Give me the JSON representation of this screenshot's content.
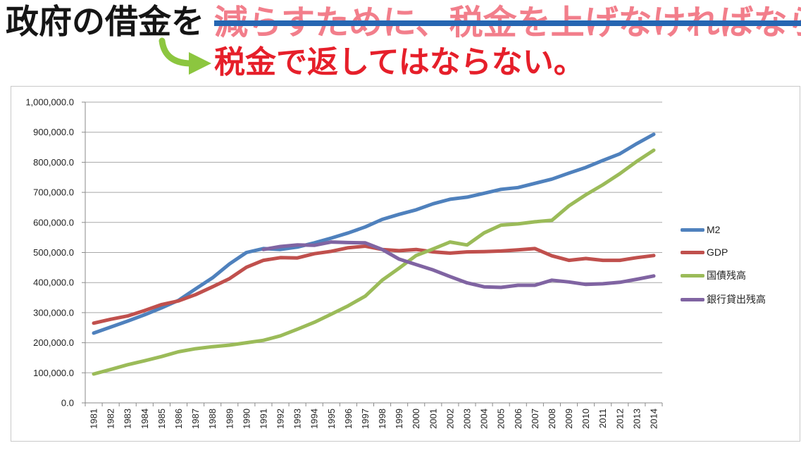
{
  "heading": {
    "black_text": "政府の借金を",
    "struck_text": "減らすために、税金を上げなければなら",
    "red_text": "税金で返してはならない。"
  },
  "colors": {
    "heading_black": "#151515",
    "heading_struck": "#f27e8b",
    "strike_line": "#2666b2",
    "heading_red": "#e61f2a",
    "arrow": "#8cc63f"
  },
  "icons": {
    "arrow": "curved-arrow-right-icon"
  },
  "chart_data": {
    "type": "line",
    "categories": [
      "1981",
      "1982",
      "1983",
      "1984",
      "1985",
      "1986",
      "1987",
      "1988",
      "1989",
      "1990",
      "1991",
      "1992",
      "1993",
      "1994",
      "1995",
      "1996",
      "1997",
      "1998",
      "1999",
      "2000",
      "2001",
      "2002",
      "2003",
      "2004",
      "2005",
      "2006",
      "2007",
      "2008",
      "2009",
      "2010",
      "2011",
      "2012",
      "2013",
      "2014"
    ],
    "series": [
      {
        "name": "M2",
        "color": "#4f81bd",
        "values": [
          232000,
          252000,
          272000,
          293000,
          316000,
          341000,
          379000,
          416000,
          462000,
          500000,
          513000,
          510000,
          518000,
          532000,
          548000,
          565000,
          585000,
          610000,
          627000,
          642000,
          662000,
          677000,
          684000,
          697000,
          710000,
          716000,
          730000,
          744000,
          764000,
          783000,
          806000,
          828000,
          862000,
          893000
        ]
      },
      {
        "name": "GDP",
        "color": "#c0504d",
        "values": [
          265000,
          278000,
          289000,
          307000,
          327000,
          339000,
          360000,
          386000,
          413000,
          451000,
          474000,
          483000,
          482000,
          496000,
          504000,
          516000,
          521000,
          510000,
          506000,
          510000,
          502000,
          498000,
          502000,
          503000,
          505000,
          509000,
          513000,
          489000,
          474000,
          480000,
          474000,
          474000,
          483000,
          490000
        ]
      },
      {
        "name": "国債残高",
        "color": "#9bbb59",
        "values": [
          96000,
          111000,
          127000,
          140000,
          154000,
          170000,
          180000,
          187000,
          192000,
          200000,
          208000,
          223000,
          245000,
          268000,
          295000,
          323000,
          355000,
          408000,
          448000,
          490000,
          512000,
          535000,
          525000,
          565000,
          591000,
          595000,
          602000,
          607000,
          655000,
          692000,
          725000,
          762000,
          803000,
          840000
        ]
      },
      {
        "name": "銀行貸出残高",
        "color": "#8064a2",
        "values": [
          null,
          null,
          null,
          null,
          null,
          null,
          null,
          null,
          null,
          null,
          510000,
          520000,
          525000,
          524000,
          535000,
          533000,
          532000,
          510000,
          478000,
          460000,
          442000,
          420000,
          399000,
          386000,
          384000,
          391000,
          391000,
          408000,
          402000,
          394000,
          396000,
          401000,
          411000,
          422000
        ]
      }
    ],
    "ylim": [
      0,
      1000000
    ],
    "yticks": [
      0,
      100000,
      200000,
      300000,
      400000,
      500000,
      600000,
      700000,
      800000,
      900000,
      1000000
    ],
    "ytick_labels": [
      "0.0",
      "100,000.0",
      "200,000.0",
      "300,000.0",
      "400,000.0",
      "500,000.0",
      "600,000.0",
      "700,000.0",
      "800,000.0",
      "900,000.0",
      "1,000,000.0"
    ],
    "grid": true,
    "legend": "right"
  }
}
